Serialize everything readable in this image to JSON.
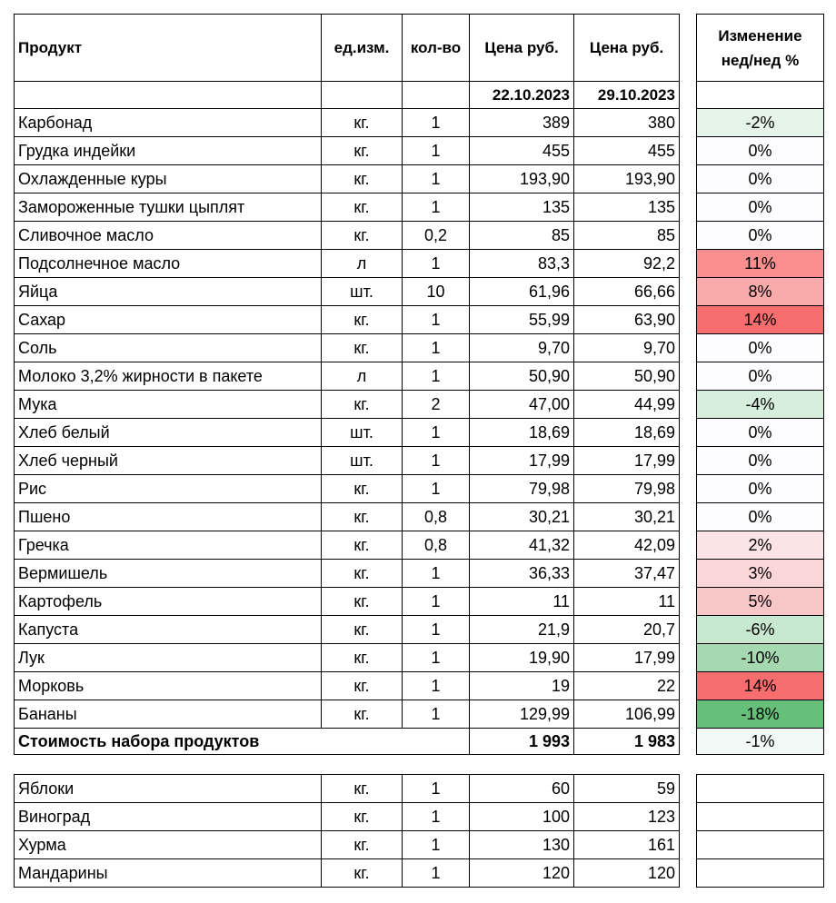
{
  "headers": {
    "product": "Продукт",
    "unit": "ед.изм.",
    "qty": "кол-во",
    "price1": "Цена руб.",
    "price2": "Цена руб.",
    "change_line1": "Изменение",
    "change_line2": "нед/нед %",
    "date1": "22.10.2023",
    "date2": "29.10.2023"
  },
  "rows": [
    {
      "name": "Карбонад",
      "unit": "кг.",
      "qty": "1",
      "p1": "389",
      "p2": "380",
      "chg": "-2%",
      "color": "#e6f4ea"
    },
    {
      "name": "Грудка индейки",
      "unit": "кг.",
      "qty": "1",
      "p1": "455",
      "p2": "455",
      "chg": "0%",
      "color": "#fcfcff"
    },
    {
      "name": "Охлажденные куры",
      "unit": "кг.",
      "qty": "1",
      "p1": "193,90",
      "p2": "193,90",
      "chg": "0%",
      "color": "#fcfcff"
    },
    {
      "name": "Замороженные тушки цыплят",
      "unit": "кг.",
      "qty": "1",
      "p1": "135",
      "p2": "135",
      "chg": "0%",
      "color": "#fcfcff"
    },
    {
      "name": "Сливочное масло",
      "unit": "кг.",
      "qty": "0,2",
      "p1": "85",
      "p2": "85",
      "chg": "0%",
      "color": "#fcfcff"
    },
    {
      "name": "Подсолнечное масло",
      "unit": "л",
      "qty": "1",
      "p1": "83,3",
      "p2": "92,2",
      "chg": "11%",
      "color": "#f88e8e"
    },
    {
      "name": "Яйца",
      "unit": "шт.",
      "qty": "10",
      "p1": "61,96",
      "p2": "66,66",
      "chg": "8%",
      "color": "#f9aaaa"
    },
    {
      "name": "Сахар",
      "unit": "кг.",
      "qty": "1",
      "p1": "55,99",
      "p2": "63,90",
      "chg": "14%",
      "color": "#f86e6e"
    },
    {
      "name": "Соль",
      "unit": "кг.",
      "qty": "1",
      "p1": "9,70",
      "p2": "9,70",
      "chg": "0%",
      "color": "#fcfcff"
    },
    {
      "name": "Молоко 3,2% жирности в пакете",
      "unit": "л",
      "qty": "1",
      "p1": "50,90",
      "p2": "50,90",
      "chg": "0%",
      "color": "#fcfcff"
    },
    {
      "name": "Мука",
      "unit": "кг.",
      "qty": "2",
      "p1": "47,00",
      "p2": "44,99",
      "chg": "-4%",
      "color": "#d7eedd"
    },
    {
      "name": "Хлеб белый",
      "unit": "шт.",
      "qty": "1",
      "p1": "18,69",
      "p2": "18,69",
      "chg": "0%",
      "color": "#fcfcff"
    },
    {
      "name": "Хлеб черный",
      "unit": "шт.",
      "qty": "1",
      "p1": "17,99",
      "p2": "17,99",
      "chg": "0%",
      "color": "#fcfcff"
    },
    {
      "name": "Рис",
      "unit": "кг.",
      "qty": "1",
      "p1": "79,98",
      "p2": "79,98",
      "chg": "0%",
      "color": "#fcfcff"
    },
    {
      "name": "Пшено",
      "unit": "кг.",
      "qty": "0,8",
      "p1": "30,21",
      "p2": "30,21",
      "chg": "0%",
      "color": "#fcfcff"
    },
    {
      "name": "Гречка",
      "unit": "кг.",
      "qty": "0,8",
      "p1": "41,32",
      "p2": "42,09",
      "chg": "2%",
      "color": "#fce4e6"
    },
    {
      "name": "Вермишель",
      "unit": "кг.",
      "qty": "1",
      "p1": "36,33",
      "p2": "37,47",
      "chg": "3%",
      "color": "#fad6d8"
    },
    {
      "name": "Картофель",
      "unit": "кг.",
      "qty": "1",
      "p1": "11",
      "p2": "11",
      "chg": "5%",
      "color": "#f9c6c8"
    },
    {
      "name": "Капуста",
      "unit": "кг.",
      "qty": "1",
      "p1": "21,9",
      "p2": "20,7",
      "chg": "-6%",
      "color": "#c9e8d0"
    },
    {
      "name": "Лук",
      "unit": "кг.",
      "qty": "1",
      "p1": "19,90",
      "p2": "17,99",
      "chg": "-10%",
      "color": "#a6d9b0"
    },
    {
      "name": "Морковь",
      "unit": "кг.",
      "qty": "1",
      "p1": "19",
      "p2": "22",
      "chg": "14%",
      "color": "#f86e6e"
    },
    {
      "name": "Бананы",
      "unit": "кг.",
      "qty": "1",
      "p1": "129,99",
      "p2": "106,99",
      "chg": "-18%",
      "color": "#65bf78"
    }
  ],
  "total": {
    "label": "Стоимость набора продуктов",
    "p1": "1 993",
    "p2": "1 983",
    "chg": "-1%",
    "color": "#f2f8f6"
  },
  "extra_rows": [
    {
      "name": "Яблоки",
      "unit": "кг.",
      "qty": "1",
      "p1": "60",
      "p2": "59"
    },
    {
      "name": "Виноград",
      "unit": "кг.",
      "qty": "1",
      "p1": "100",
      "p2": "123"
    },
    {
      "name": "Хурма",
      "unit": "кг.",
      "qty": "1",
      "p1": "130",
      "p2": "161"
    },
    {
      "name": "Мандарины",
      "unit": "кг.",
      "qty": "1",
      "p1": "120",
      "p2": "120"
    }
  ]
}
